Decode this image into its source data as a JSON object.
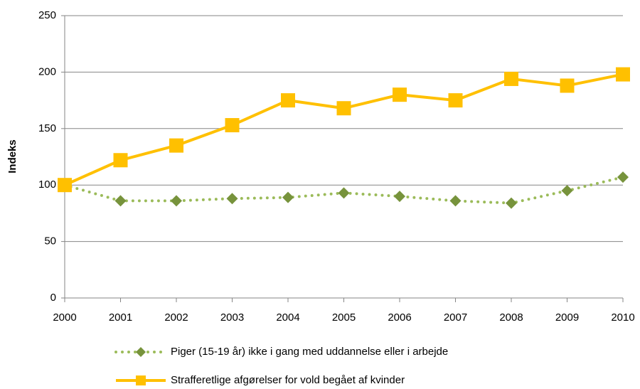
{
  "chart_data": {
    "type": "line",
    "y_label": "Indeks",
    "x": [
      2000,
      2001,
      2002,
      2003,
      2004,
      2005,
      2006,
      2007,
      2008,
      2009,
      2010
    ],
    "xlim": [
      2000,
      2010
    ],
    "xticks": [
      2000,
      2001,
      2002,
      2003,
      2004,
      2005,
      2006,
      2007,
      2008,
      2009,
      2010
    ],
    "ylim": [
      0,
      250
    ],
    "yticks": [
      0,
      50,
      100,
      150,
      200,
      250
    ],
    "grid": true,
    "legend": "bottom",
    "series": [
      {
        "name": "Piger (15-19 år) ikke i gang med uddannelse eller i arbejde",
        "color": "#77933c",
        "line_style": "dotted",
        "marker": "diamond",
        "values": [
          100,
          86,
          86,
          88,
          89,
          93,
          90,
          86,
          84,
          95,
          107
        ]
      },
      {
        "name": "Strafferetlige afgørelser for vold begået af kvinder",
        "color": "#ffc000",
        "line_style": "solid",
        "marker": "square",
        "values": [
          100,
          122,
          135,
          153,
          175,
          168,
          180,
          175,
          194,
          188,
          198
        ]
      }
    ]
  }
}
